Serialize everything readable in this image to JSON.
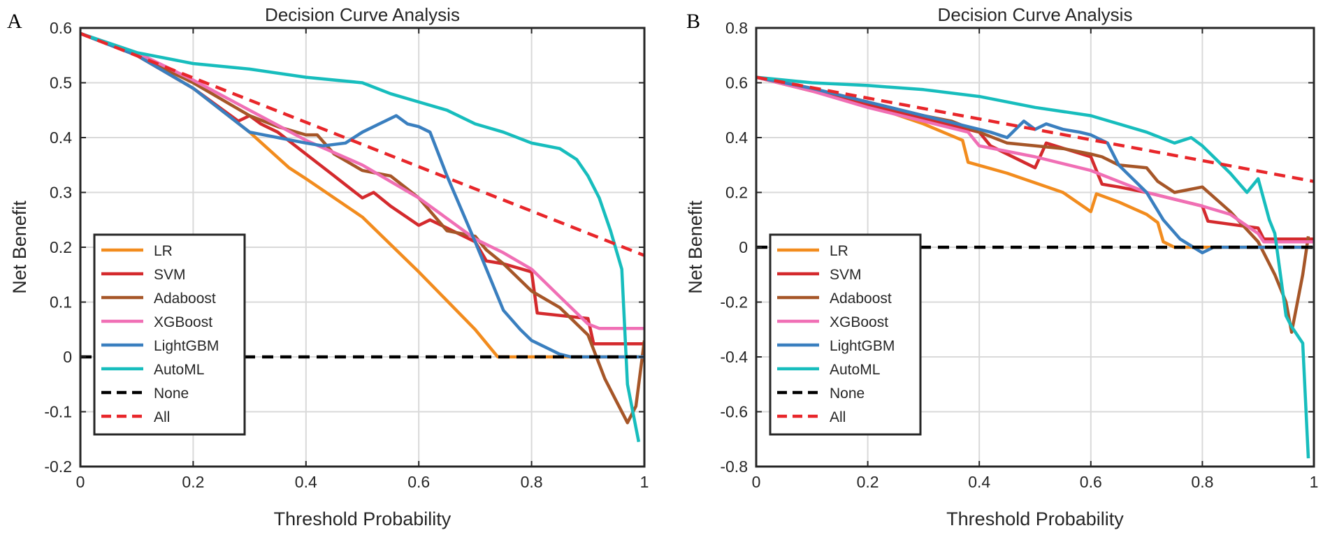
{
  "chart_data": [
    {
      "panel": "A",
      "type": "line",
      "title": "Decision Curve Analysis",
      "xlabel": "Threshold Probability",
      "ylabel": "Net Benefit",
      "xlim": [
        0,
        1
      ],
      "ylim": [
        -0.2,
        0.6
      ],
      "xticks": [
        0,
        0.2,
        0.4,
        0.6,
        0.8,
        1
      ],
      "xtick_labels": [
        "0",
        "0.2",
        "0.4",
        "0.6",
        "0.8",
        "1"
      ],
      "yticks": [
        -0.2,
        -0.1,
        0,
        0.1,
        0.2,
        0.3,
        0.4,
        0.5,
        0.6
      ],
      "ytick_labels": [
        "-0.2",
        "-0.1",
        "0",
        "0.1",
        "0.2",
        "0.3",
        "0.4",
        "0.5",
        "0.6"
      ],
      "grid": true,
      "legend_placement": "lower-left",
      "series": [
        {
          "name": "LR",
          "color": "#f28c1e",
          "dash": false,
          "x": [
            0,
            0.1,
            0.2,
            0.3,
            0.37,
            0.4,
            0.5,
            0.6,
            0.7,
            0.74,
            0.8,
            1
          ],
          "y": [
            0.59,
            0.55,
            0.49,
            0.41,
            0.345,
            0.325,
            0.255,
            0.155,
            0.05,
            0.0,
            0.0,
            0.0
          ]
        },
        {
          "name": "SVM",
          "color": "#d42a2d",
          "dash": false,
          "x": [
            0,
            0.1,
            0.2,
            0.28,
            0.3,
            0.32,
            0.35,
            0.4,
            0.45,
            0.5,
            0.52,
            0.55,
            0.6,
            0.62,
            0.65,
            0.7,
            0.72,
            0.75,
            0.8,
            0.81,
            0.9,
            0.91,
            1
          ],
          "y": [
            0.59,
            0.55,
            0.49,
            0.43,
            0.44,
            0.425,
            0.41,
            0.37,
            0.33,
            0.29,
            0.3,
            0.275,
            0.24,
            0.25,
            0.235,
            0.21,
            0.175,
            0.17,
            0.155,
            0.08,
            0.07,
            0.024,
            0.024
          ]
        },
        {
          "name": "Adaboost",
          "color": "#a65628",
          "dash": false,
          "x": [
            0,
            0.1,
            0.2,
            0.3,
            0.35,
            0.4,
            0.42,
            0.45,
            0.5,
            0.55,
            0.6,
            0.65,
            0.7,
            0.72,
            0.75,
            0.8,
            0.85,
            0.9,
            0.93,
            0.95,
            0.97,
            0.985,
            1
          ],
          "y": [
            0.59,
            0.55,
            0.5,
            0.44,
            0.42,
            0.405,
            0.405,
            0.37,
            0.34,
            0.33,
            0.29,
            0.23,
            0.22,
            0.195,
            0.17,
            0.12,
            0.09,
            0.04,
            -0.04,
            -0.08,
            -0.12,
            -0.09,
            0.03
          ]
        },
        {
          "name": "XGBoost",
          "color": "#f06fb5",
          "dash": false,
          "x": [
            0,
            0.1,
            0.2,
            0.3,
            0.4,
            0.5,
            0.6,
            0.7,
            0.75,
            0.8,
            0.85,
            0.9,
            0.92,
            1
          ],
          "y": [
            0.59,
            0.555,
            0.505,
            0.45,
            0.395,
            0.35,
            0.29,
            0.215,
            0.19,
            0.16,
            0.11,
            0.06,
            0.052,
            0.052
          ]
        },
        {
          "name": "LightGBM",
          "color": "#3a7fbf",
          "dash": false,
          "x": [
            0,
            0.1,
            0.2,
            0.3,
            0.35,
            0.4,
            0.43,
            0.47,
            0.5,
            0.53,
            0.56,
            0.58,
            0.6,
            0.62,
            0.65,
            0.7,
            0.75,
            0.78,
            0.8,
            0.85,
            0.87,
            1
          ],
          "y": [
            0.59,
            0.55,
            0.49,
            0.41,
            0.4,
            0.39,
            0.385,
            0.39,
            0.41,
            0.425,
            0.44,
            0.425,
            0.42,
            0.41,
            0.33,
            0.21,
            0.085,
            0.05,
            0.03,
            0.005,
            0.0,
            0.0
          ]
        },
        {
          "name": "AutoML",
          "color": "#17bdbd",
          "dash": false,
          "x": [
            0,
            0.1,
            0.2,
            0.3,
            0.4,
            0.5,
            0.55,
            0.6,
            0.65,
            0.7,
            0.75,
            0.8,
            0.85,
            0.88,
            0.9,
            0.92,
            0.94,
            0.96,
            0.97,
            0.99
          ],
          "y": [
            0.59,
            0.555,
            0.535,
            0.525,
            0.51,
            0.5,
            0.48,
            0.465,
            0.45,
            0.425,
            0.41,
            0.39,
            0.38,
            0.36,
            0.33,
            0.29,
            0.23,
            0.16,
            -0.05,
            -0.155
          ]
        },
        {
          "name": "None",
          "color": "#000000",
          "dash": true,
          "x": [
            0,
            1
          ],
          "y": [
            0,
            0
          ]
        },
        {
          "name": "All",
          "color": "#e8262a",
          "dash": true,
          "x": [
            0,
            1
          ],
          "y": [
            0.59,
            0.185
          ]
        }
      ]
    },
    {
      "panel": "B",
      "type": "line",
      "title": "Decision Curve Analysis",
      "xlabel": "Threshold Probability",
      "ylabel": "Net Benefit",
      "xlim": [
        0,
        1
      ],
      "ylim": [
        -0.8,
        0.8
      ],
      "xticks": [
        0,
        0.2,
        0.4,
        0.6,
        0.8,
        1
      ],
      "xtick_labels": [
        "0",
        "0.2",
        "0.4",
        "0.6",
        "0.8",
        "1"
      ],
      "yticks": [
        -0.8,
        -0.6,
        -0.4,
        -0.2,
        0,
        0.2,
        0.4,
        0.6,
        0.8
      ],
      "ytick_labels": [
        "-0.8",
        "-0.6",
        "-0.4",
        "-0.2",
        "0",
        "0.2",
        "0.4",
        "0.6",
        "0.8"
      ],
      "grid": true,
      "legend_placement": "lower-left",
      "series": [
        {
          "name": "LR",
          "color": "#f28c1e",
          "dash": false,
          "x": [
            0,
            0.1,
            0.2,
            0.3,
            0.37,
            0.38,
            0.45,
            0.5,
            0.55,
            0.6,
            0.61,
            0.65,
            0.7,
            0.72,
            0.73,
            0.75,
            1
          ],
          "y": [
            0.62,
            0.57,
            0.52,
            0.45,
            0.39,
            0.31,
            0.27,
            0.235,
            0.2,
            0.13,
            0.195,
            0.165,
            0.12,
            0.09,
            0.02,
            0.0,
            0.0
          ]
        },
        {
          "name": "SVM",
          "color": "#d42a2d",
          "dash": false,
          "x": [
            0,
            0.1,
            0.2,
            0.3,
            0.4,
            0.42,
            0.5,
            0.52,
            0.6,
            0.62,
            0.65,
            0.7,
            0.75,
            0.8,
            0.81,
            0.9,
            0.91,
            1
          ],
          "y": [
            0.62,
            0.57,
            0.52,
            0.47,
            0.42,
            0.37,
            0.29,
            0.38,
            0.33,
            0.23,
            0.22,
            0.2,
            0.175,
            0.15,
            0.095,
            0.07,
            0.03,
            0.03
          ]
        },
        {
          "name": "Adaboost",
          "color": "#a65628",
          "dash": false,
          "x": [
            0,
            0.1,
            0.2,
            0.3,
            0.35,
            0.4,
            0.45,
            0.5,
            0.55,
            0.6,
            0.62,
            0.65,
            0.7,
            0.72,
            0.75,
            0.8,
            0.85,
            0.9,
            0.93,
            0.95,
            0.96,
            0.98,
            0.99
          ],
          "y": [
            0.62,
            0.58,
            0.53,
            0.48,
            0.46,
            0.42,
            0.38,
            0.37,
            0.36,
            0.34,
            0.33,
            0.3,
            0.29,
            0.24,
            0.2,
            0.22,
            0.13,
            0.02,
            -0.1,
            -0.2,
            -0.31,
            -0.1,
            0.04
          ]
        },
        {
          "name": "XGBoost",
          "color": "#f06fb5",
          "dash": false,
          "x": [
            0,
            0.1,
            0.2,
            0.3,
            0.38,
            0.4,
            0.5,
            0.6,
            0.7,
            0.8,
            0.85,
            0.9,
            0.91,
            1
          ],
          "y": [
            0.62,
            0.57,
            0.51,
            0.46,
            0.42,
            0.37,
            0.33,
            0.28,
            0.2,
            0.15,
            0.12,
            0.05,
            0.02,
            0.02
          ]
        },
        {
          "name": "LightGBM",
          "color": "#3a7fbf",
          "dash": false,
          "x": [
            0,
            0.1,
            0.2,
            0.3,
            0.38,
            0.42,
            0.45,
            0.48,
            0.5,
            0.52,
            0.55,
            0.58,
            0.6,
            0.63,
            0.65,
            0.7,
            0.73,
            0.76,
            0.8,
            0.82,
            1
          ],
          "y": [
            0.62,
            0.58,
            0.53,
            0.48,
            0.44,
            0.42,
            0.4,
            0.46,
            0.43,
            0.45,
            0.43,
            0.42,
            0.41,
            0.38,
            0.3,
            0.2,
            0.1,
            0.03,
            -0.02,
            0.0,
            0.0
          ]
        },
        {
          "name": "AutoML",
          "color": "#17bdbd",
          "dash": false,
          "x": [
            0,
            0.1,
            0.2,
            0.3,
            0.4,
            0.5,
            0.6,
            0.65,
            0.7,
            0.75,
            0.78,
            0.8,
            0.82,
            0.85,
            0.88,
            0.9,
            0.92,
            0.93,
            0.95,
            0.96,
            0.98,
            0.99
          ],
          "y": [
            0.62,
            0.6,
            0.59,
            0.575,
            0.55,
            0.51,
            0.48,
            0.45,
            0.42,
            0.38,
            0.4,
            0.37,
            0.33,
            0.27,
            0.2,
            0.25,
            0.1,
            0.05,
            -0.25,
            -0.29,
            -0.35,
            -0.77
          ]
        },
        {
          "name": "None",
          "color": "#000000",
          "dash": true,
          "x": [
            0,
            1
          ],
          "y": [
            0,
            0
          ]
        },
        {
          "name": "All",
          "color": "#e8262a",
          "dash": true,
          "x": [
            0,
            1
          ],
          "y": [
            0.62,
            0.24
          ]
        }
      ]
    }
  ]
}
